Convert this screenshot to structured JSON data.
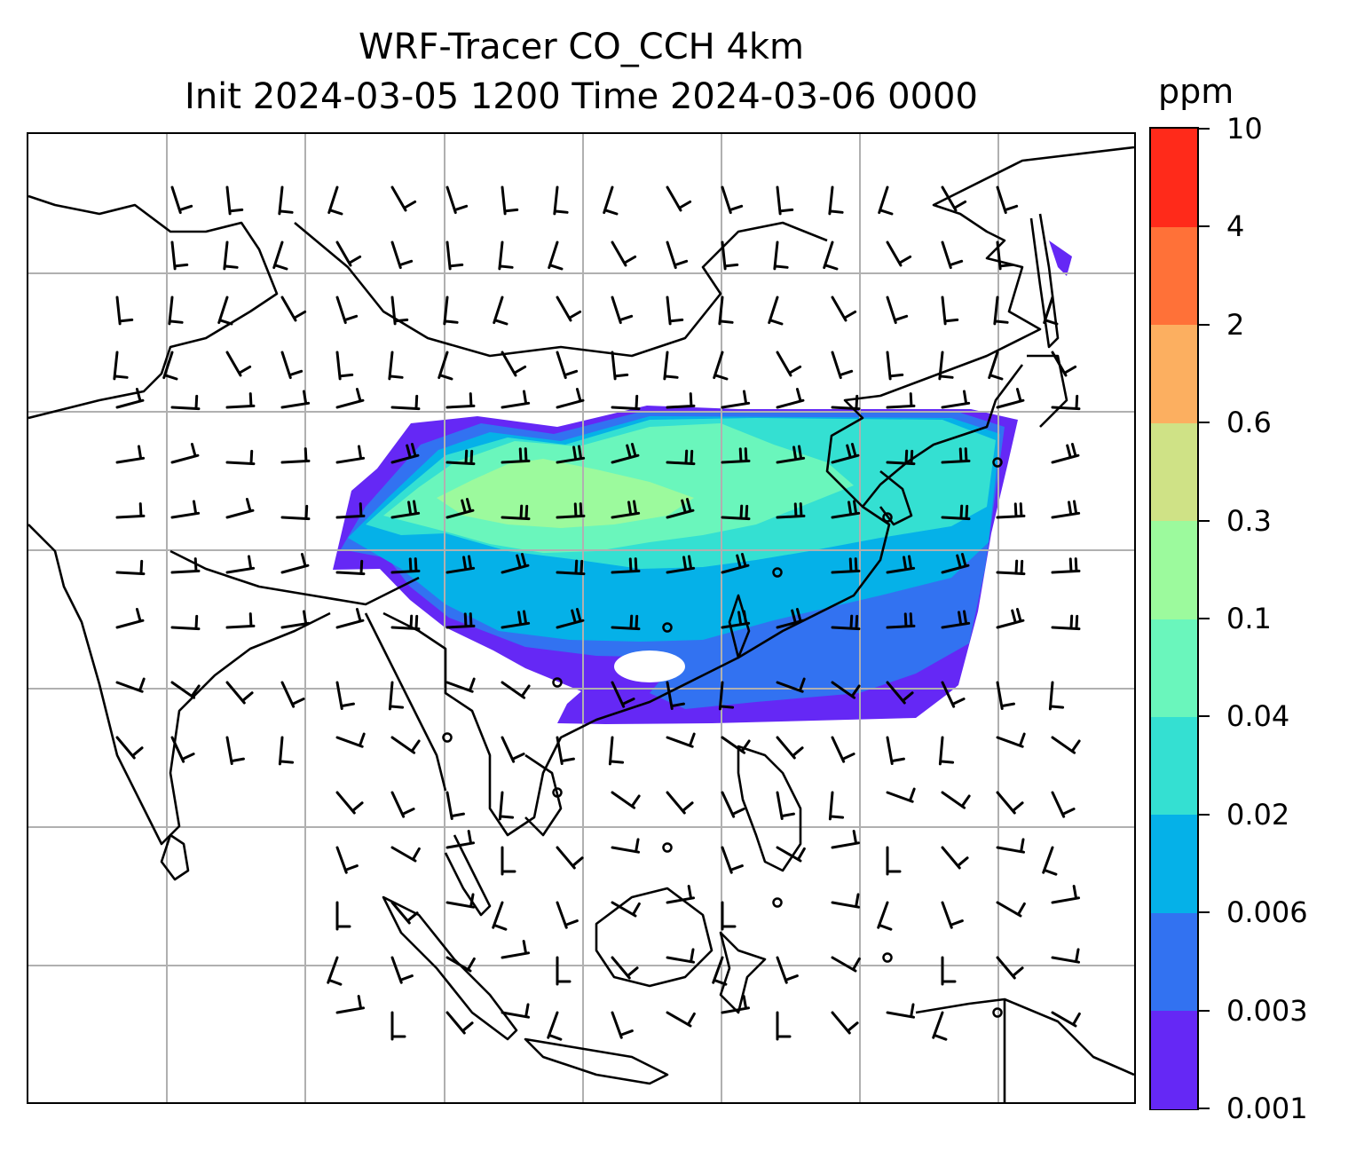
{
  "title": {
    "line1": "WRF-Tracer CO_CCH 4km",
    "line2": "Init 2024-03-05 1200 Time 2024-03-06 0000"
  },
  "colorbar": {
    "unit": "ppm",
    "ticks": [
      "0.001",
      "0.003",
      "0.006",
      "0.02",
      "0.04",
      "0.1",
      "0.3",
      "0.6",
      "2",
      "4",
      "10"
    ],
    "colors": [
      "#6528f5",
      "#3272f1",
      "#05b1e8",
      "#34e0d2",
      "#6af6bc",
      "#9cfa9d",
      "#cfe286",
      "#fcaf60",
      "#ff7138",
      "#ff2a1a"
    ]
  },
  "map": {
    "projection": "lat-lon",
    "gridlines": true,
    "gridline_color": "#b0b0b0",
    "features": [
      "coastlines",
      "country-borders",
      "wind-barbs",
      "tracer-concentration-shading"
    ]
  }
}
